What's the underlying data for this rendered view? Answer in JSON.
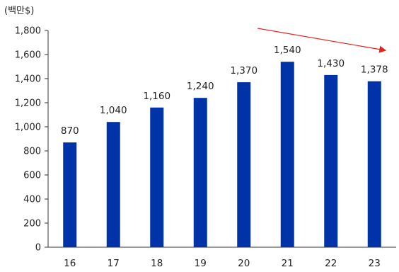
{
  "chart_data": {
    "type": "bar",
    "unit_label": "(백만$)",
    "categories": [
      "16",
      "17",
      "18",
      "19",
      "20",
      "21",
      "22",
      "23"
    ],
    "values": [
      870,
      1040,
      1160,
      1240,
      1370,
      1540,
      1430,
      1378
    ],
    "data_labels": [
      "870",
      "1,040",
      "1,160",
      "1,240",
      "1,370",
      "1,540",
      "1,430",
      "1,378"
    ],
    "ylim": [
      0,
      1800
    ],
    "yticks": [
      0,
      200,
      400,
      600,
      800,
      1000,
      1200,
      1400,
      1600,
      1800
    ],
    "ytick_labels": [
      "0",
      "200",
      "400",
      "600",
      "800",
      "1,000",
      "1,200",
      "1,400",
      "1,600",
      "1,800"
    ],
    "grid": false,
    "colors": {
      "bar": "#0033a8",
      "arrow": "#e8201b",
      "axis": "#333333"
    },
    "annotation": {
      "type": "trend-arrow",
      "direction": "down",
      "from_category": "21",
      "to_category": "23"
    }
  }
}
